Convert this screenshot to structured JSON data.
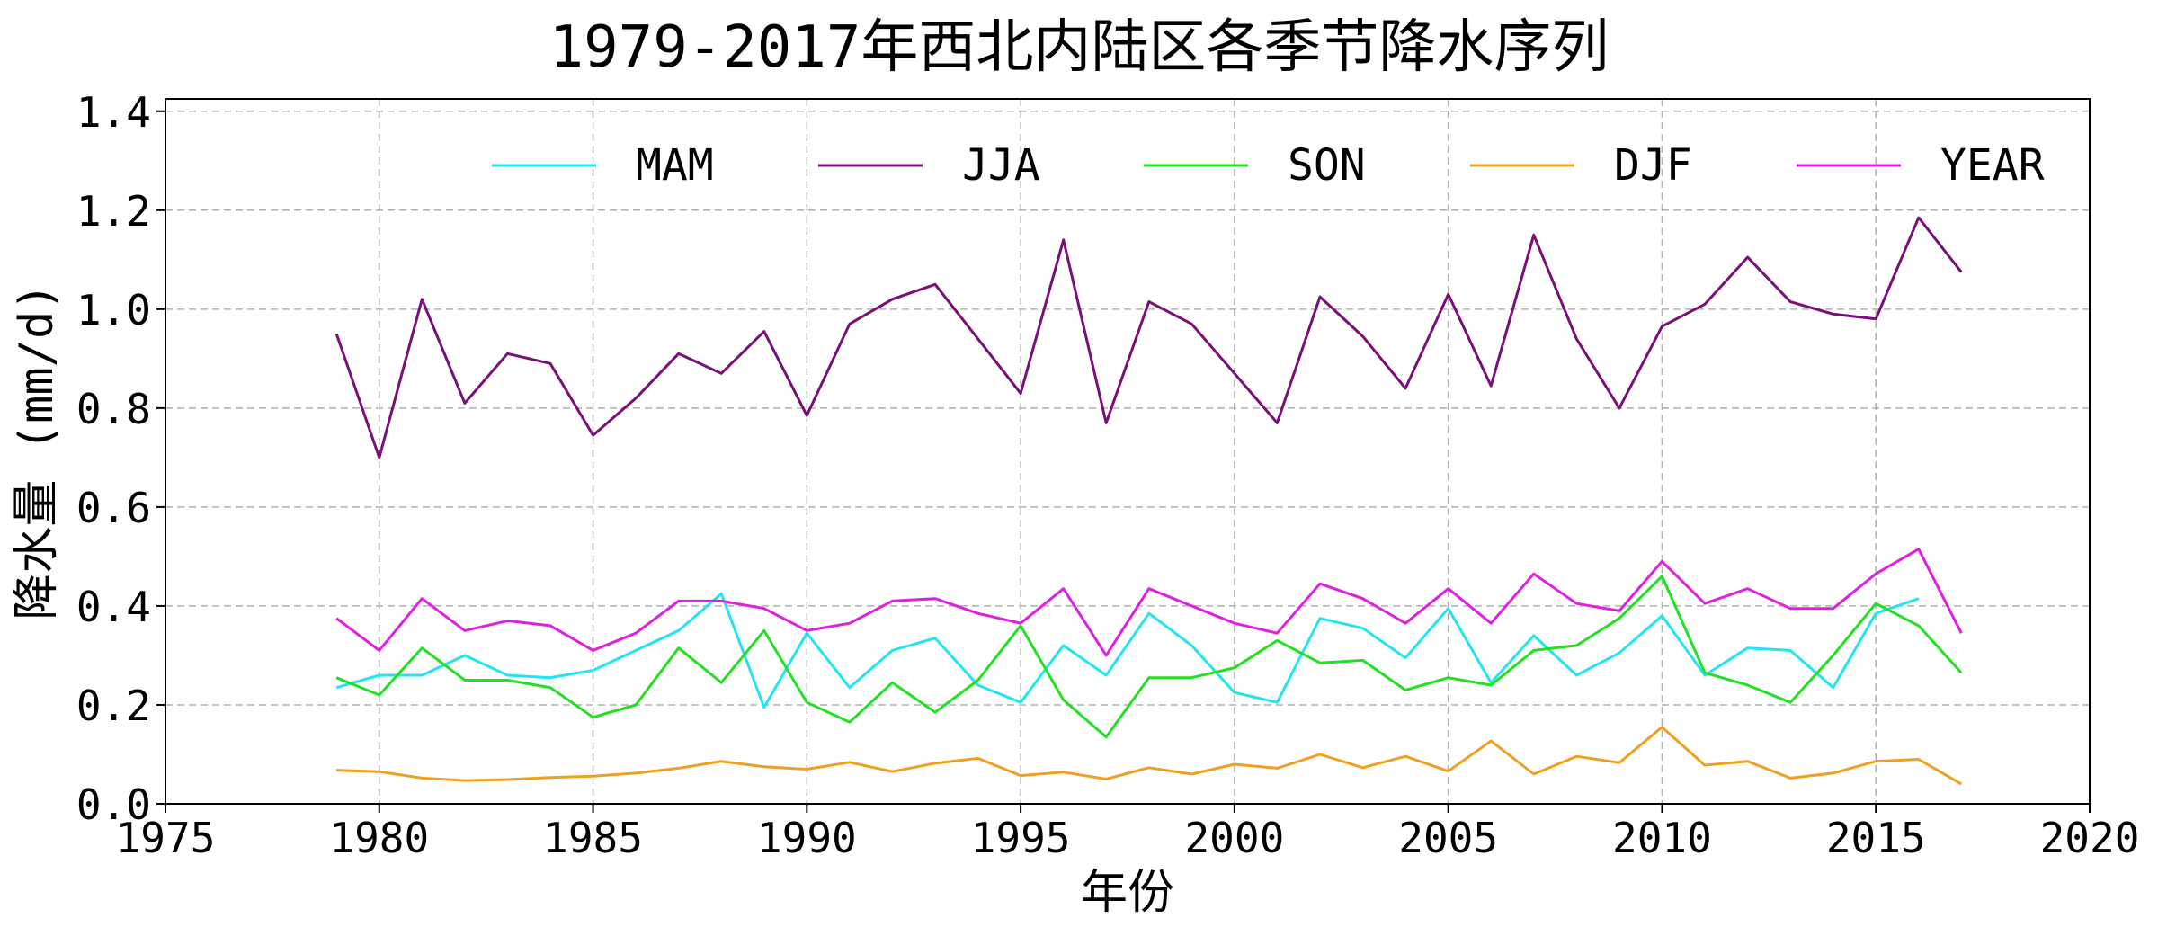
{
  "chart_data": {
    "type": "line",
    "title": "1979-2017年西北内陆区各季节降水序列",
    "xlabel": "年份",
    "ylabel": "降水量 (mm/d)",
    "xlim": [
      1975,
      2020
    ],
    "ylim": [
      0,
      1.425
    ],
    "xticks": [
      "1975",
      "1980",
      "1985",
      "1990",
      "1995",
      "2000",
      "2005",
      "2010",
      "2015",
      "2020"
    ],
    "yticks": [
      "0.0",
      "0.2",
      "0.4",
      "0.6",
      "0.8",
      "1.0",
      "1.2",
      "1.4"
    ],
    "grid": true,
    "legend_position": "top",
    "x": [
      1979,
      1980,
      1981,
      1982,
      1983,
      1984,
      1985,
      1986,
      1987,
      1988,
      1989,
      1990,
      1991,
      1992,
      1993,
      1994,
      1995,
      1996,
      1997,
      1998,
      1999,
      2000,
      2001,
      2002,
      2003,
      2004,
      2005,
      2006,
      2007,
      2008,
      2009,
      2010,
      2011,
      2012,
      2013,
      2014,
      2015,
      2016,
      2017
    ],
    "series": [
      {
        "name": "MAM",
        "color": "#22e5f0",
        "values": [
          0.235,
          0.26,
          0.26,
          0.3,
          0.26,
          0.255,
          0.27,
          0.31,
          0.35,
          0.425,
          0.195,
          0.345,
          0.235,
          0.31,
          0.335,
          0.24,
          0.205,
          0.32,
          0.26,
          0.385,
          0.32,
          0.225,
          0.205,
          0.375,
          0.355,
          0.295,
          0.395,
          0.245,
          0.34,
          0.26,
          0.305,
          0.38,
          0.26,
          0.315,
          0.31,
          0.235,
          0.385,
          0.415,
          null
        ]
      },
      {
        "name": "JJA",
        "color": "#7a0f7a",
        "values": [
          0.95,
          0.7,
          1.02,
          0.81,
          0.91,
          0.89,
          0.745,
          0.82,
          0.91,
          0.87,
          0.955,
          0.785,
          0.97,
          1.02,
          1.05,
          0.94,
          0.83,
          1.14,
          0.77,
          1.015,
          0.97,
          0.87,
          0.77,
          1.025,
          0.945,
          0.84,
          1.03,
          0.845,
          1.15,
          0.94,
          0.8,
          0.965,
          1.01,
          1.105,
          1.015,
          0.99,
          0.98,
          1.185,
          1.075
        ]
      },
      {
        "name": "SON",
        "color": "#22e022",
        "values": [
          0.255,
          0.22,
          0.315,
          0.25,
          0.25,
          0.235,
          0.175,
          0.2,
          0.315,
          0.245,
          0.35,
          0.205,
          0.165,
          0.245,
          0.185,
          0.25,
          0.36,
          0.21,
          0.135,
          0.255,
          0.255,
          0.275,
          0.33,
          0.285,
          0.29,
          0.23,
          0.255,
          0.24,
          0.31,
          0.32,
          0.375,
          0.46,
          0.265,
          0.24,
          0.205,
          0.3,
          0.405,
          0.36,
          0.265
        ]
      },
      {
        "name": "DJF",
        "color": "#f0a020",
        "values": [
          0.068,
          0.065,
          0.052,
          0.047,
          0.049,
          0.053,
          0.056,
          0.062,
          0.072,
          0.086,
          0.075,
          0.07,
          0.084,
          0.065,
          0.082,
          0.092,
          0.057,
          0.064,
          0.05,
          0.073,
          0.06,
          0.08,
          0.072,
          0.1,
          0.073,
          0.096,
          0.066,
          0.127,
          0.06,
          0.096,
          0.083,
          0.155,
          0.078,
          0.086,
          0.052,
          0.062,
          0.086,
          0.09,
          0.04
        ]
      },
      {
        "name": "YEAR",
        "color": "#e020e0",
        "values": [
          0.375,
          0.31,
          0.415,
          0.35,
          0.37,
          0.36,
          0.31,
          0.345,
          0.41,
          0.41,
          0.395,
          0.35,
          0.365,
          0.41,
          0.415,
          0.385,
          0.365,
          0.435,
          0.3,
          0.435,
          0.4,
          0.365,
          0.345,
          0.445,
          0.415,
          0.365,
          0.435,
          0.365,
          0.465,
          0.405,
          0.39,
          0.49,
          0.405,
          0.435,
          0.395,
          0.395,
          0.465,
          0.515,
          0.345
        ]
      }
    ]
  }
}
